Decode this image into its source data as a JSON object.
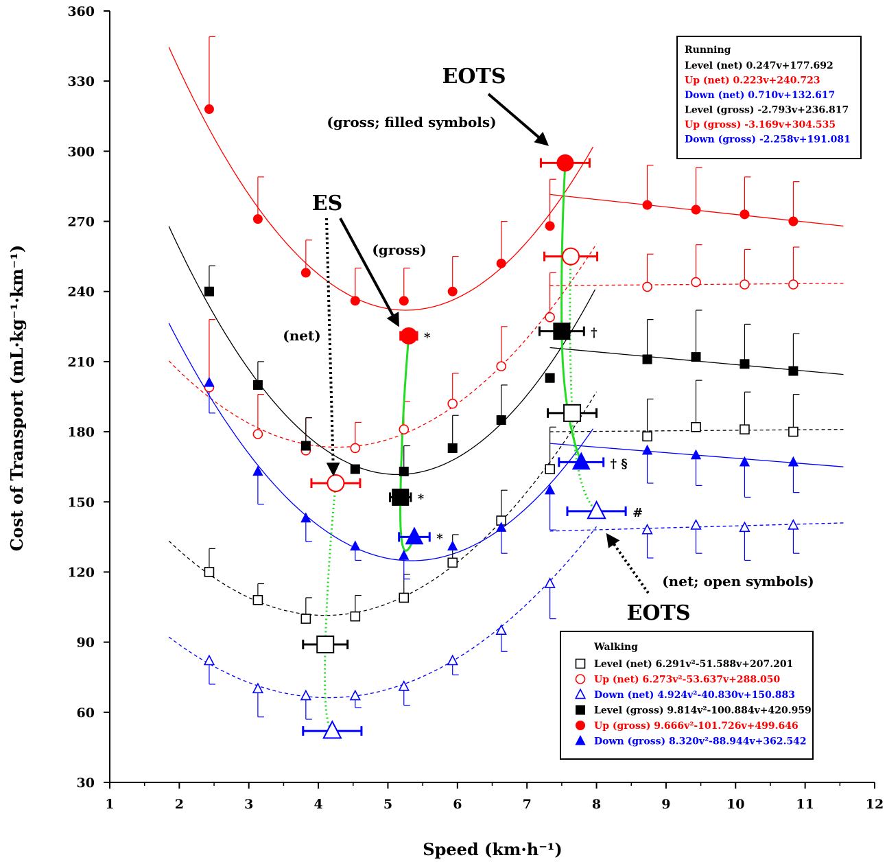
{
  "chart_data": {
    "type": "scatter",
    "xlabel": "Speed (km·h⁻¹)",
    "ylabel": "Cost of Transport (mL·kg⁻¹·km⁻¹)",
    "xlim": [
      1,
      12
    ],
    "ylim": [
      30,
      360
    ],
    "x_ticks": [
      "1",
      "2",
      "3",
      "4",
      "5",
      "6",
      "7",
      "8",
      "9",
      "10",
      "11",
      "12"
    ],
    "y_ticks": [
      "30",
      "60",
      "90",
      "120",
      "150",
      "180",
      "210",
      "240",
      "270",
      "300",
      "330",
      "360"
    ],
    "colors": {
      "level": "#000000",
      "up": "#ff0000",
      "down": "#0000ff",
      "eots_es": "#00dd00"
    },
    "walking_x": [
      2.43,
      3.13,
      3.82,
      4.53,
      5.23,
      5.93,
      6.63,
      7.33
    ],
    "running_x": [
      8.73,
      9.43,
      10.13,
      10.83
    ],
    "series": [
      {
        "name": "Level (net)",
        "marker": "open-square",
        "color": "#000000",
        "walking": [
          120,
          108,
          100,
          101,
          109,
          124,
          142,
          164
        ],
        "walking_err": [
          10,
          7,
          9,
          9,
          10,
          12,
          13,
          18
        ],
        "running": [
          178,
          182,
          181,
          180
        ],
        "running_err": [
          16,
          20,
          16,
          16
        ]
      },
      {
        "name": "Up (net)",
        "marker": "open-circle",
        "color": "#ff0000",
        "walking": [
          199,
          179,
          172,
          173,
          181,
          192,
          208,
          229
        ],
        "walking_err": [
          29,
          17,
          14,
          11,
          12,
          13,
          17,
          19
        ],
        "running": [
          242,
          244,
          243,
          243
        ],
        "running_err": [
          14,
          16,
          15,
          16
        ]
      },
      {
        "name": "Down (net)",
        "marker": "open-triangle",
        "color": "#0000ff",
        "walking": [
          82,
          70,
          67,
          67,
          71,
          82,
          95,
          115
        ],
        "walking_err": [
          10,
          12,
          10,
          5,
          8,
          6,
          9,
          15
        ],
        "running": [
          138,
          140,
          139,
          140
        ],
        "running_err": [
          12,
          12,
          14,
          12
        ]
      },
      {
        "name": "Level (gross)",
        "marker": "filled-square",
        "color": "#000000",
        "walking": [
          240,
          200,
          174,
          164,
          163,
          173,
          185,
          203
        ],
        "walking_err": [
          11,
          10,
          12,
          0,
          11,
          14,
          15,
          0
        ],
        "running": [
          211,
          212,
          209,
          206
        ],
        "running_err": [
          17,
          20,
          17,
          16
        ]
      },
      {
        "name": "Up (gross)",
        "marker": "filled-circle",
        "color": "#ff0000",
        "walking": [
          318,
          271,
          248,
          236,
          236,
          240,
          252,
          268
        ],
        "walking_err": [
          31,
          18,
          14,
          14,
          14,
          15,
          18,
          20
        ],
        "running": [
          277,
          275,
          273,
          270
        ],
        "running_err": [
          17,
          18,
          16,
          17
        ]
      },
      {
        "name": "Down (gross)",
        "marker": "filled-triangle",
        "color": "#0000ff",
        "walking": [
          201,
          163,
          143,
          131,
          127,
          131,
          139,
          155
        ],
        "walking_err": [
          13,
          14,
          10,
          6,
          10,
          0,
          11,
          17
        ],
        "running": [
          172,
          170,
          167,
          167
        ],
        "running_err": [
          14,
          13,
          15,
          13
        ]
      }
    ],
    "es_points": [
      {
        "name": "Level (net)",
        "marker": "open-square",
        "color": "#000000",
        "x": 4.1,
        "y": 89,
        "xerr": 0.32
      },
      {
        "name": "Up (net)",
        "marker": "open-circle",
        "color": "#ff0000",
        "x": 4.25,
        "y": 158,
        "xerr": 0.35
      },
      {
        "name": "Down (net)",
        "marker": "open-triangle",
        "color": "#0000ff",
        "x": 4.2,
        "y": 52,
        "xerr": 0.42
      },
      {
        "name": "Level (gross)",
        "marker": "filled-square",
        "color": "#000000",
        "x": 5.18,
        "y": 152,
        "xerr": 0.15,
        "sig": "*"
      },
      {
        "name": "Up (gross)",
        "marker": "filled-circle",
        "color": "#ff0000",
        "x": 5.3,
        "y": 221,
        "xerr": 0.12,
        "sig": "*"
      },
      {
        "name": "Down (gross)",
        "marker": "filled-triangle",
        "color": "#0000ff",
        "x": 5.38,
        "y": 135,
        "xerr": 0.22,
        "sig": "*"
      }
    ],
    "eots_points": [
      {
        "name": "Level (net)",
        "marker": "open-square",
        "color": "#000000",
        "x": 7.65,
        "y": 188,
        "xerr": 0.35
      },
      {
        "name": "Up (net)",
        "marker": "open-circle",
        "color": "#ff0000",
        "x": 7.63,
        "y": 255,
        "xerr": 0.38
      },
      {
        "name": "Down (net)",
        "marker": "open-triangle",
        "color": "#0000ff",
        "x": 8.0,
        "y": 146,
        "xerr": 0.42,
        "sig": "#"
      },
      {
        "name": "Level (gross)",
        "marker": "filled-square",
        "color": "#000000",
        "x": 7.5,
        "y": 223,
        "xerr": 0.32,
        "sig": "†"
      },
      {
        "name": "Up (gross)",
        "marker": "filled-circle",
        "color": "#ff0000",
        "x": 7.55,
        "y": 295,
        "xerr": 0.35
      },
      {
        "name": "Down (gross)",
        "marker": "filled-triangle",
        "color": "#0000ff",
        "x": 7.78,
        "y": 167,
        "xerr": 0.32,
        "sig": "† §"
      }
    ],
    "walking_fits": [
      {
        "name": "Level (net)",
        "a": 6.291,
        "b": -51.588,
        "c": 207.201,
        "x_range": [
          1.85,
          8.0
        ],
        "dashed": true,
        "color": "#000000"
      },
      {
        "name": "Up (net)",
        "a": 6.273,
        "b": -53.637,
        "c": 288.05,
        "x_range": [
          1.85,
          8.0
        ],
        "dashed": true,
        "color": "#ff0000"
      },
      {
        "name": "Down (net)",
        "a": 4.924,
        "b": -40.83,
        "c": 150.883,
        "x_range": [
          1.85,
          8.0
        ],
        "dashed": true,
        "color": "#0000ff"
      },
      {
        "name": "Level (gross)",
        "a": 9.814,
        "b": -100.884,
        "c": 420.959,
        "x_range": [
          1.85,
          7.98
        ],
        "dashed": false,
        "color": "#000000"
      },
      {
        "name": "Up (gross)",
        "a": 9.666,
        "b": -101.726,
        "c": 499.646,
        "x_range": [
          1.85,
          7.95
        ],
        "dashed": false,
        "color": "#ff0000"
      },
      {
        "name": "Down (gross)",
        "a": 8.32,
        "b": -88.944,
        "c": 362.542,
        "x_range": [
          1.85,
          7.95
        ],
        "dashed": false,
        "color": "#0000ff"
      }
    ],
    "running_fits": [
      {
        "name": "Level (net)",
        "y_start": 180,
        "y_end": 181,
        "dashed": true,
        "color": "#000000"
      },
      {
        "name": "Up (net)",
        "y_start": 242.5,
        "y_end": 243.5,
        "dashed": true,
        "color": "#ff0000"
      },
      {
        "name": "Down (net)",
        "y_start": 137.5,
        "y_end": 141,
        "dashed": true,
        "color": "#0000ff"
      },
      {
        "name": "Level (gross)",
        "y_start": 216,
        "y_end": 204.5,
        "dashed": false,
        "color": "#000000"
      },
      {
        "name": "Up (gross)",
        "y_start": 281.5,
        "y_end": 268,
        "dashed": false,
        "color": "#ff0000"
      },
      {
        "name": "Down (gross)",
        "y_start": 175,
        "y_end": 165,
        "dashed": false,
        "color": "#0000ff"
      }
    ],
    "running_fit_x_range": [
      7.33,
      11.55
    ]
  },
  "legend_running": {
    "title": "Running",
    "items": [
      {
        "label": "Level (net)",
        "eq": "0.247v+177.692",
        "color": "#000000"
      },
      {
        "label": "Up (net)",
        "eq": "0.223v+240.723",
        "color": "#ff0000"
      },
      {
        "label": "Down (net)",
        "eq": "0.710v+132.617",
        "color": "#0000ff"
      },
      {
        "label": "Level (gross)",
        "eq": "-2.793v+236.817",
        "color": "#000000"
      },
      {
        "label": "Up (gross)",
        "eq": "-3.169v+304.535",
        "color": "#ff0000"
      },
      {
        "label": "Down (gross)",
        "eq": "-2.258v+191.081",
        "color": "#0000ff"
      }
    ]
  },
  "legend_walking": {
    "title": "Walking",
    "items": [
      {
        "label": "Level (net)",
        "eq": "6.291v²-51.588v+207.201",
        "color": "#000000",
        "marker": "open-square"
      },
      {
        "label": "Up (net)",
        "eq": "6.273v²-53.637v+288.050",
        "color": "#ff0000",
        "marker": "open-circle"
      },
      {
        "label": "Down (net)",
        "eq": "4.924v²-40.830v+150.883",
        "color": "#0000ff",
        "marker": "open-triangle"
      },
      {
        "label": "Level (gross)",
        "eq": "9.814v²-100.884v+420.959",
        "color": "#000000",
        "marker": "filled-square"
      },
      {
        "label": "Up (gross)",
        "eq": "9.666v²-101.726v+499.646",
        "color": "#ff0000",
        "marker": "filled-circle"
      },
      {
        "label": "Down (gross)",
        "eq": "8.320v²-88.944v+362.542",
        "color": "#0000ff",
        "marker": "filled-triangle"
      }
    ]
  },
  "annotations": {
    "eots_top": "EOTS",
    "eots_top_sub": "(gross; filled symbols)",
    "es": "ES",
    "es_gross": "(gross)",
    "es_net": "(net)",
    "eots_bottom": "EOTS",
    "eots_bottom_sub": "(net; open symbols)"
  }
}
